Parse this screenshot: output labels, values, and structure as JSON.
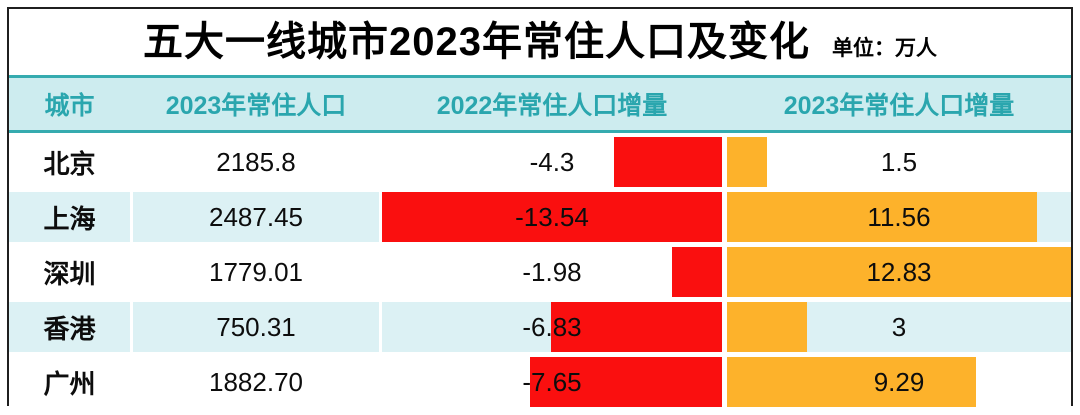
{
  "title": {
    "text": "五大一线城市2023年常住人口及变化",
    "unit_label": "单位：万人"
  },
  "columns": {
    "city": "城市",
    "pop2023": "2023年常住人口",
    "delta2022": "2022年常住人口增量",
    "delta2023": "2023年常住人口增量"
  },
  "rows": [
    {
      "city": "北京",
      "pop2023": "2185.8",
      "delta2022": "-4.3",
      "delta2023": "1.5"
    },
    {
      "city": "上海",
      "pop2023": "2487.45",
      "delta2022": "-13.54",
      "delta2023": "11.56"
    },
    {
      "city": "深圳",
      "pop2023": "1779.01",
      "delta2022": "-1.98",
      "delta2023": "12.83"
    },
    {
      "city": "香港",
      "pop2023": "750.31",
      "delta2022": "-6.83",
      "delta2023": "3"
    },
    {
      "city": "广州",
      "pop2023": "1882.70",
      "delta2022": "-7.65",
      "delta2023": "9.29"
    }
  ],
  "colors": {
    "negative_bar": "#fa0f0f",
    "positive_bar": "#fdb22b",
    "header_bg": "#cdecef",
    "header_text": "#2aa6ae",
    "teal_line": "#35abaf",
    "row_alt_bg": "#dcf1f4",
    "row_bg": "#ffffff",
    "border": "#1f1f1f",
    "text": "#0d0d0d"
  },
  "chart_data": {
    "type": "table",
    "title": "五大一线城市2023年常住人口及变化",
    "unit": "万人",
    "columns": [
      "城市",
      "2023年常住人口",
      "2022年常住人口增量",
      "2023年常住人口增量"
    ],
    "categories": [
      "北京",
      "上海",
      "深圳",
      "香港",
      "广州"
    ],
    "series": [
      {
        "name": "2023年常住人口",
        "values": [
          2185.8,
          2487.45,
          1779.01,
          750.31,
          1882.7
        ]
      },
      {
        "name": "2022年常住人口增量",
        "values": [
          -4.3,
          -13.54,
          -1.98,
          -6.83,
          -7.65
        ],
        "bar_color": "#fa0f0f",
        "bar_align": "right"
      },
      {
        "name": "2023年常住人口增量",
        "values": [
          1.5,
          11.56,
          12.83,
          3,
          9.29
        ],
        "bar_color": "#fdb22b",
        "bar_align": "left"
      }
    ],
    "legend": "none",
    "notes": "in-cell data bars scaled to column max absolute value; alternating row shading"
  }
}
